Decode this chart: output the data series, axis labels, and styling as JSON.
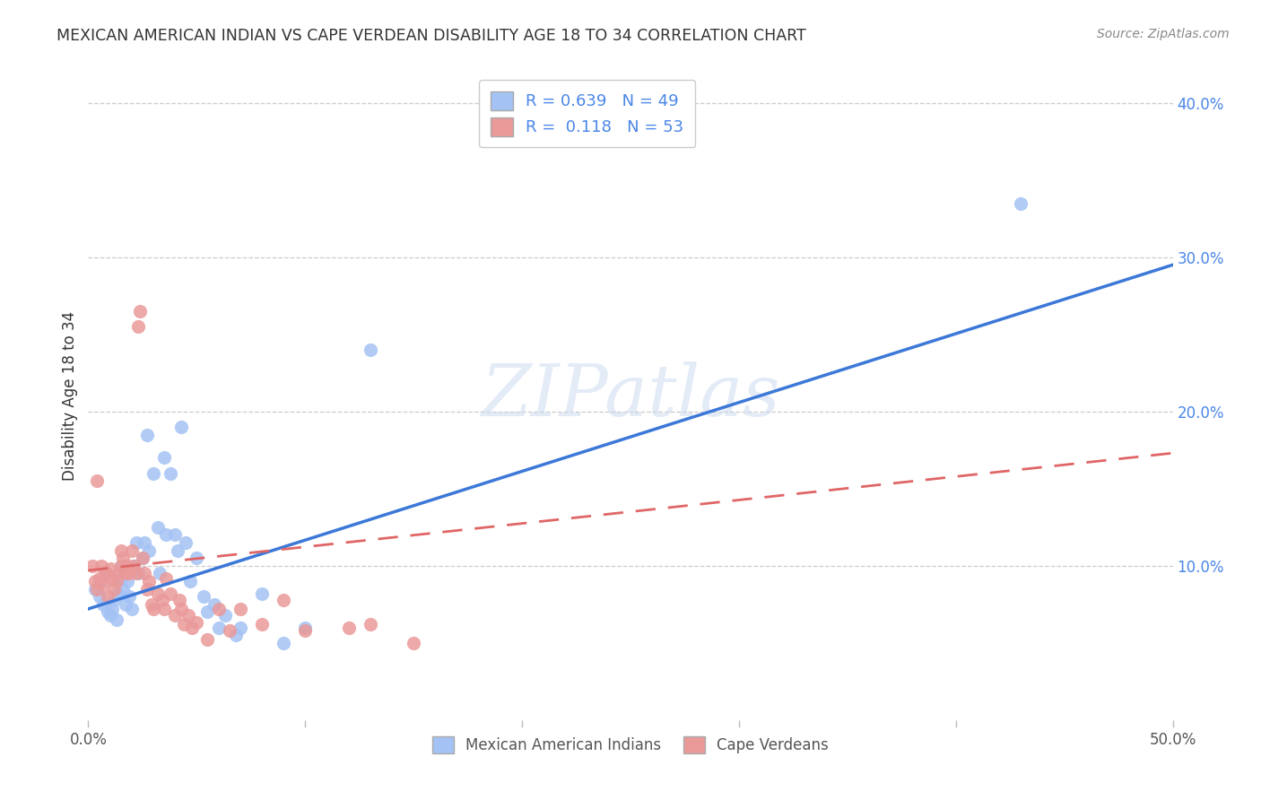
{
  "title": "MEXICAN AMERICAN INDIAN VS CAPE VERDEAN DISABILITY AGE 18 TO 34 CORRELATION CHART",
  "source": "Source: ZipAtlas.com",
  "ylabel": "Disability Age 18 to 34",
  "xlim": [
    0.0,
    0.5
  ],
  "ylim": [
    0.0,
    0.42
  ],
  "x_ticks": [
    0.0,
    0.1,
    0.2,
    0.3,
    0.4,
    0.5
  ],
  "x_tick_labels": [
    "0.0%",
    "",
    "",
    "",
    "",
    "50.0%"
  ],
  "y_ticks": [
    0.1,
    0.2,
    0.3,
    0.4
  ],
  "y_tick_labels": [
    "10.0%",
    "20.0%",
    "30.0%",
    "40.0%"
  ],
  "legend_r1": "R = 0.639",
  "legend_n1": "N = 49",
  "legend_r2": "R =  0.118",
  "legend_n2": "N = 53",
  "color_blue": "#a4c2f4",
  "color_pink": "#ea9999",
  "color_blue_dark": "#3c78d8",
  "color_pink_dark": "#e06666",
  "color_blue_label": "#4a86e8",
  "watermark": "ZIPatlas",
  "blue_scatter": [
    [
      0.003,
      0.085
    ],
    [
      0.005,
      0.08
    ],
    [
      0.006,
      0.09
    ],
    [
      0.007,
      0.075
    ],
    [
      0.008,
      0.095
    ],
    [
      0.009,
      0.07
    ],
    [
      0.01,
      0.068
    ],
    [
      0.011,
      0.072
    ],
    [
      0.012,
      0.078
    ],
    [
      0.013,
      0.065
    ],
    [
      0.014,
      0.082
    ],
    [
      0.015,
      0.092
    ],
    [
      0.015,
      0.1
    ],
    [
      0.016,
      0.085
    ],
    [
      0.017,
      0.075
    ],
    [
      0.018,
      0.09
    ],
    [
      0.019,
      0.08
    ],
    [
      0.02,
      0.072
    ],
    [
      0.021,
      0.1
    ],
    [
      0.022,
      0.115
    ],
    [
      0.023,
      0.095
    ],
    [
      0.025,
      0.105
    ],
    [
      0.026,
      0.115
    ],
    [
      0.027,
      0.185
    ],
    [
      0.028,
      0.11
    ],
    [
      0.03,
      0.16
    ],
    [
      0.032,
      0.125
    ],
    [
      0.033,
      0.095
    ],
    [
      0.035,
      0.17
    ],
    [
      0.036,
      0.12
    ],
    [
      0.038,
      0.16
    ],
    [
      0.04,
      0.12
    ],
    [
      0.041,
      0.11
    ],
    [
      0.043,
      0.19
    ],
    [
      0.045,
      0.115
    ],
    [
      0.047,
      0.09
    ],
    [
      0.05,
      0.105
    ],
    [
      0.053,
      0.08
    ],
    [
      0.055,
      0.07
    ],
    [
      0.058,
      0.075
    ],
    [
      0.06,
      0.06
    ],
    [
      0.063,
      0.068
    ],
    [
      0.068,
      0.055
    ],
    [
      0.07,
      0.06
    ],
    [
      0.08,
      0.082
    ],
    [
      0.09,
      0.05
    ],
    [
      0.1,
      0.06
    ],
    [
      0.13,
      0.24
    ],
    [
      0.43,
      0.335
    ]
  ],
  "pink_scatter": [
    [
      0.002,
      0.1
    ],
    [
      0.003,
      0.09
    ],
    [
      0.004,
      0.085
    ],
    [
      0.005,
      0.092
    ],
    [
      0.006,
      0.1
    ],
    [
      0.007,
      0.088
    ],
    [
      0.008,
      0.095
    ],
    [
      0.009,
      0.08
    ],
    [
      0.01,
      0.098
    ],
    [
      0.011,
      0.092
    ],
    [
      0.012,
      0.085
    ],
    [
      0.013,
      0.09
    ],
    [
      0.014,
      0.095
    ],
    [
      0.015,
      0.1
    ],
    [
      0.015,
      0.11
    ],
    [
      0.016,
      0.105
    ],
    [
      0.017,
      0.095
    ],
    [
      0.018,
      0.1
    ],
    [
      0.019,
      0.095
    ],
    [
      0.02,
      0.11
    ],
    [
      0.021,
      0.1
    ],
    [
      0.022,
      0.095
    ],
    [
      0.023,
      0.255
    ],
    [
      0.024,
      0.265
    ],
    [
      0.025,
      0.105
    ],
    [
      0.026,
      0.095
    ],
    [
      0.027,
      0.085
    ],
    [
      0.028,
      0.09
    ],
    [
      0.029,
      0.075
    ],
    [
      0.03,
      0.072
    ],
    [
      0.032,
      0.082
    ],
    [
      0.034,
      0.078
    ],
    [
      0.035,
      0.072
    ],
    [
      0.036,
      0.092
    ],
    [
      0.038,
      0.082
    ],
    [
      0.04,
      0.068
    ],
    [
      0.042,
      0.078
    ],
    [
      0.043,
      0.072
    ],
    [
      0.044,
      0.062
    ],
    [
      0.046,
      0.068
    ],
    [
      0.048,
      0.06
    ],
    [
      0.05,
      0.063
    ],
    [
      0.055,
      0.052
    ],
    [
      0.06,
      0.072
    ],
    [
      0.065,
      0.058
    ],
    [
      0.07,
      0.072
    ],
    [
      0.08,
      0.062
    ],
    [
      0.09,
      0.078
    ],
    [
      0.1,
      0.058
    ],
    [
      0.12,
      0.06
    ],
    [
      0.13,
      0.062
    ],
    [
      0.15,
      0.05
    ],
    [
      0.004,
      0.155
    ]
  ],
  "blue_line_x": [
    0.0,
    0.5
  ],
  "blue_line_y": [
    0.072,
    0.295
  ],
  "pink_line_x": [
    0.0,
    0.5
  ],
  "pink_line_y": [
    0.097,
    0.173
  ]
}
